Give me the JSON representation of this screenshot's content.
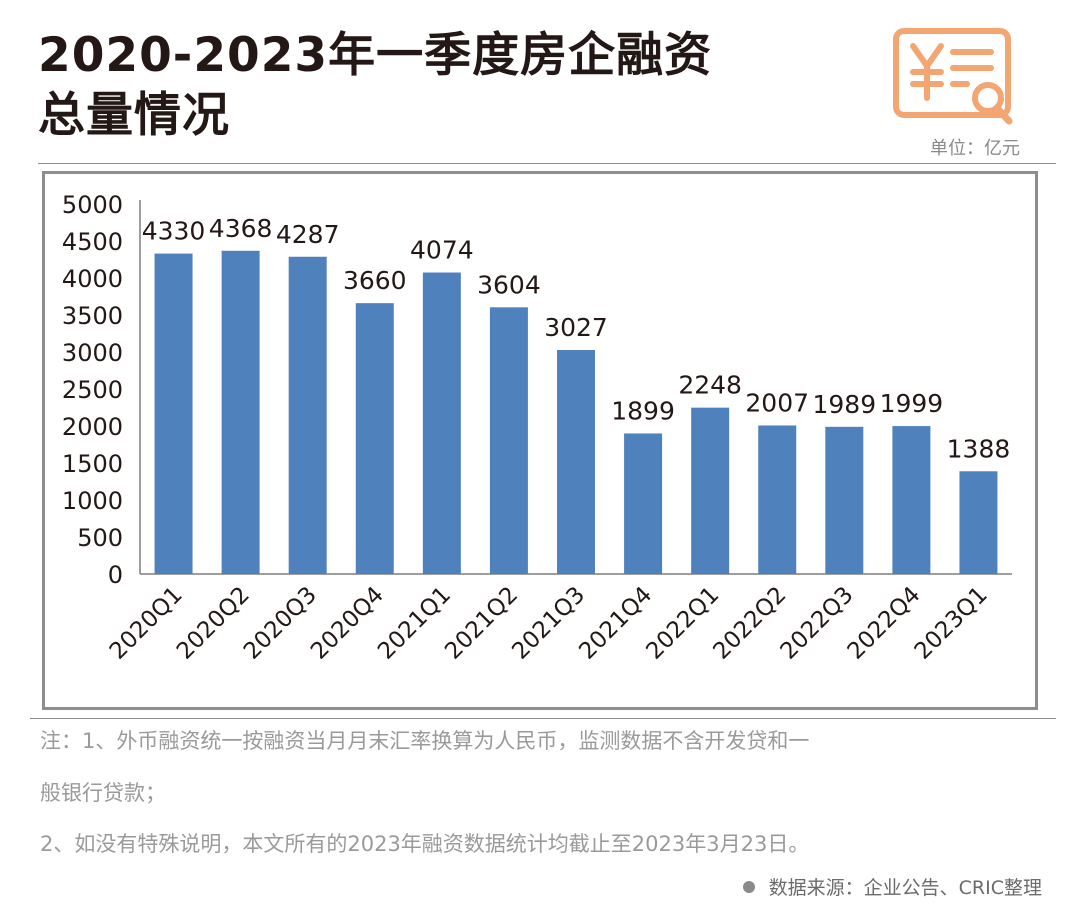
{
  "header": {
    "title_line1": "2020-2023年一季度房企融资",
    "title_line2": "总量情况",
    "unit_label": "单位：亿元",
    "logo_icon": "yuan-document-search-icon",
    "accent_color": "#f4a672"
  },
  "chart_data": {
    "type": "bar",
    "categories": [
      "2020Q1",
      "2020Q2",
      "2020Q3",
      "2020Q4",
      "2021Q1",
      "2021Q2",
      "2021Q3",
      "2021Q4",
      "2022Q1",
      "2022Q2",
      "2022Q3",
      "2022Q4",
      "2023Q1"
    ],
    "values": [
      4330,
      4368,
      4287,
      3660,
      4074,
      3604,
      3027,
      1899,
      2248,
      2007,
      1989,
      1999,
      1388
    ],
    "value_labels": [
      "4330",
      "4368",
      "4287",
      "3660",
      "4074",
      "3604",
      "3027",
      "1899",
      "2248",
      "2007",
      "1989",
      "1999",
      "1388"
    ],
    "ylim": [
      0,
      5000
    ],
    "yticks": [
      0,
      500,
      1000,
      1500,
      2000,
      2500,
      3000,
      3500,
      4000,
      4500,
      5000
    ],
    "bar_color": "#4f81bd",
    "grid": false,
    "legend": "none"
  },
  "notes": {
    "line1": "注：1、外币融资统一按融资当月月末汇率换算为人民币，监测数据不含开发贷和一",
    "line2": "般银行贷款；",
    "line3": "2、如没有特殊说明，本文所有的2023年融资数据统计均截止至2023年3月23日。"
  },
  "source": {
    "label": "数据来源：企业公告、CRIC整理"
  }
}
